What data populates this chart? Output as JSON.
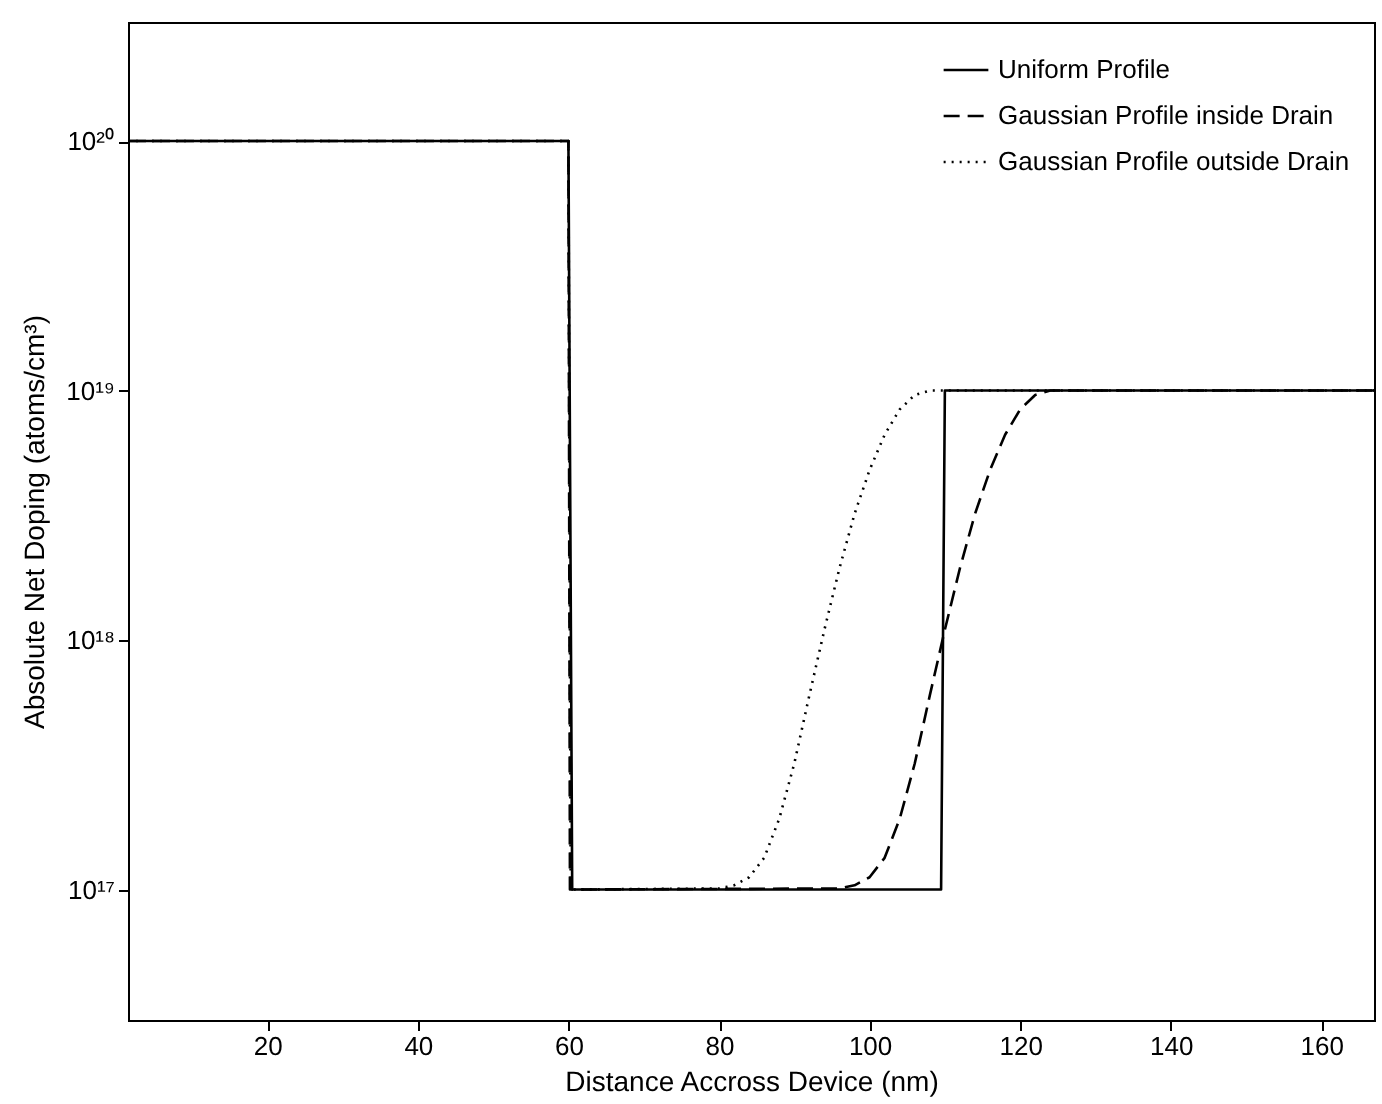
{
  "chart_data": {
    "type": "line",
    "xlabel": "Distance Accross Device (nm)",
    "ylabel": "Absolute Net Doping (atoms/cm³)",
    "log": "y",
    "xlim": [
      1.5,
      167
    ],
    "xticks": [
      20,
      40,
      60,
      80,
      100,
      120,
      140,
      160
    ],
    "ylim": [
      3e+16,
      3e+20
    ],
    "yticks": [
      {
        "value": 1e+17,
        "label": "10¹⁷"
      },
      {
        "value": 1e+18,
        "label": "10¹⁸"
      },
      {
        "value": 1e+19,
        "label": "10¹⁹"
      },
      {
        "value": 1e+20,
        "label": "10²⁰"
      }
    ],
    "grid": false,
    "legend": "top right",
    "marker": "none",
    "series": [
      {
        "name": "Uniform Profile",
        "color": "#000000",
        "line_style": "solid",
        "x": [
          1.5,
          60,
          60.5,
          109.5,
          110,
          167
        ],
        "values": [
          1e+20,
          1e+20,
          1e+17,
          1e+17,
          1e+19,
          1e+19
        ]
      },
      {
        "name": "Gaussian Profile inside Drain",
        "color": "#000000",
        "line_style": "dashed",
        "x": [
          1.5,
          60,
          60.2,
          96,
          98,
          100,
          102,
          104,
          106,
          108,
          110,
          112,
          114,
          116,
          118,
          120,
          122,
          124,
          167
        ],
        "values": [
          1e+20,
          1e+20,
          1e+17,
          1.01e+17,
          1.04e+17,
          1.12e+17,
          1.34e+17,
          1.92e+17,
          3.2e+17,
          6e+17,
          1.1e+18,
          1.94e+18,
          3.2e+18,
          4.8e+18,
          6.65e+18,
          8.4e+18,
          9.6e+18,
          1e+19,
          1e+19
        ]
      },
      {
        "name": "Gaussian Profile outside Drain",
        "color": "#000000",
        "line_style": "dotted",
        "x": [
          1.5,
          60,
          60.3,
          80,
          82,
          84,
          86,
          88,
          90,
          92,
          94,
          96,
          98,
          100,
          102,
          104,
          106,
          108,
          167
        ],
        "values": [
          1e+20,
          1e+20,
          1e+17,
          1.01e+17,
          1.04e+17,
          1.12e+17,
          1.34e+17,
          1.92e+17,
          3.2e+17,
          6e+17,
          1.1e+18,
          1.94e+18,
          3.2e+18,
          4.8e+18,
          6.65e+18,
          8.4e+18,
          9.6e+18,
          1e+19,
          1e+19
        ]
      }
    ]
  }
}
